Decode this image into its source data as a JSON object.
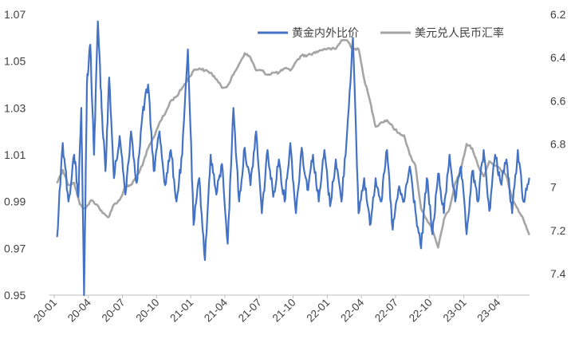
{
  "chart_data": {
    "type": "line",
    "title": "",
    "xlabel": "",
    "ylabel": "",
    "x_tick_labels": [
      "20-01",
      "20-04",
      "20-07",
      "20-10",
      "21-01",
      "21-04",
      "21-07",
      "21-10",
      "22-01",
      "22-04",
      "22-07",
      "22-10",
      "23-01",
      "23-04"
    ],
    "left_axis": {
      "min": 0.95,
      "max": 1.07,
      "ticks": [
        "1.07",
        "1.05",
        "1.03",
        "1.01",
        "0.99",
        "0.97",
        "0.95"
      ]
    },
    "right_axis": {
      "min": 6.2,
      "max": 7.5,
      "inverted": true,
      "ticks": [
        "6.2",
        "6.4",
        "6.6",
        "6.8",
        "7",
        "7.2",
        "7.4"
      ]
    },
    "legend_position": "top-right",
    "series": [
      {
        "name": "黄金内外比价",
        "axis": "left",
        "color": "#4472C4",
        "points": [
          [
            "20-01",
            0.975
          ],
          [
            "20-01",
            1.015
          ],
          [
            "20-02",
            0.99
          ],
          [
            "20-02",
            1.01
          ],
          [
            "20-03",
            0.992
          ],
          [
            "20-03",
            1.03
          ],
          [
            "20-03",
            0.95
          ],
          [
            "20-03",
            1.04
          ],
          [
            "20-04",
            1.057
          ],
          [
            "20-04",
            1.01
          ],
          [
            "20-04",
            1.067
          ],
          [
            "20-05",
            1.03
          ],
          [
            "20-05",
            1.003
          ],
          [
            "20-05",
            1.043
          ],
          [
            "20-06",
            1.0
          ],
          [
            "20-06",
            1.018
          ],
          [
            "20-07",
            0.993
          ],
          [
            "20-07",
            1.02
          ],
          [
            "20-08",
            0.998
          ],
          [
            "20-08",
            1.027
          ],
          [
            "20-09",
            1.04
          ],
          [
            "20-09",
            1.003
          ],
          [
            "20-10",
            1.02
          ],
          [
            "20-10",
            0.997
          ],
          [
            "20-11",
            1.012
          ],
          [
            "20-11",
            0.99
          ],
          [
            "20-12",
            1.01
          ],
          [
            "20-12",
            1.055
          ],
          [
            "21-01",
            0.98
          ],
          [
            "21-01",
            1.0
          ],
          [
            "21-02",
            0.965
          ],
          [
            "21-02",
            1.01
          ],
          [
            "21-03",
            0.993
          ],
          [
            "21-03",
            1.006
          ],
          [
            "21-04",
            0.972
          ],
          [
            "21-04",
            1.03
          ],
          [
            "21-05",
            0.99
          ],
          [
            "21-05",
            1.013
          ],
          [
            "21-06",
            0.997
          ],
          [
            "21-06",
            1.02
          ],
          [
            "21-07",
            0.985
          ],
          [
            "21-07",
            1.012
          ],
          [
            "21-08",
            0.992
          ],
          [
            "21-08",
            1.008
          ],
          [
            "21-09",
            0.99
          ],
          [
            "21-09",
            1.015
          ],
          [
            "21-10",
            0.985
          ],
          [
            "21-10",
            1.013
          ],
          [
            "21-11",
            0.995
          ],
          [
            "21-11",
            1.01
          ],
          [
            "21-12",
            0.99
          ],
          [
            "21-12",
            1.012
          ],
          [
            "22-01",
            0.988
          ],
          [
            "22-01",
            1.008
          ],
          [
            "22-02",
            0.99
          ],
          [
            "22-02",
            1.02
          ],
          [
            "22-03",
            1.06
          ],
          [
            "22-03",
            0.985
          ],
          [
            "22-04",
            1.0
          ],
          [
            "22-04",
            0.98
          ],
          [
            "22-05",
            1.0
          ],
          [
            "22-05",
            0.99
          ],
          [
            "22-06",
            1.012
          ],
          [
            "22-06",
            0.978
          ],
          [
            "22-07",
            0.995
          ],
          [
            "22-07",
            0.99
          ],
          [
            "22-08",
            1.005
          ],
          [
            "22-08",
            0.986
          ],
          [
            "22-09",
            0.97
          ],
          [
            "22-09",
            1.0
          ],
          [
            "22-10",
            0.976
          ],
          [
            "22-10",
            1.002
          ],
          [
            "22-11",
            0.985
          ],
          [
            "22-11",
            1.01
          ],
          [
            "22-12",
            0.99
          ],
          [
            "22-12",
            1.005
          ],
          [
            "23-01",
            0.976
          ],
          [
            "23-01",
            1.003
          ],
          [
            "23-02",
            0.99
          ],
          [
            "23-02",
            1.012
          ],
          [
            "23-03",
            0.986
          ],
          [
            "23-03",
            1.01
          ],
          [
            "23-04",
            0.998
          ],
          [
            "23-04",
            1.008
          ],
          [
            "23-05",
            0.985
          ],
          [
            "23-05",
            1.012
          ],
          [
            "23-06",
            0.99
          ],
          [
            "23-06",
            1.0
          ]
        ]
      },
      {
        "name": "美元兑人民币汇率",
        "axis": "right",
        "color": "#A5A5A5",
        "points": [
          [
            "20-01",
            6.98
          ],
          [
            "20-01",
            6.92
          ],
          [
            "20-02",
            6.99
          ],
          [
            "20-02",
            6.98
          ],
          [
            "20-03",
            7.08
          ],
          [
            "20-03",
            7.1
          ],
          [
            "20-04",
            7.06
          ],
          [
            "20-04",
            7.08
          ],
          [
            "20-05",
            7.12
          ],
          [
            "20-05",
            7.14
          ],
          [
            "20-06",
            7.08
          ],
          [
            "20-06",
            7.06
          ],
          [
            "20-07",
            7.0
          ],
          [
            "20-07",
            6.99
          ],
          [
            "20-08",
            6.95
          ],
          [
            "20-08",
            6.9
          ],
          [
            "20-09",
            6.82
          ],
          [
            "20-09",
            6.77
          ],
          [
            "20-10",
            6.7
          ],
          [
            "20-10",
            6.66
          ],
          [
            "20-11",
            6.6
          ],
          [
            "20-11",
            6.58
          ],
          [
            "20-12",
            6.54
          ],
          [
            "20-12",
            6.5
          ],
          [
            "21-01",
            6.46
          ],
          [
            "21-01",
            6.45
          ],
          [
            "21-02",
            6.46
          ],
          [
            "21-02",
            6.47
          ],
          [
            "21-03",
            6.5
          ],
          [
            "21-03",
            6.54
          ],
          [
            "21-04",
            6.53
          ],
          [
            "21-04",
            6.48
          ],
          [
            "21-05",
            6.43
          ],
          [
            "21-05",
            6.38
          ],
          [
            "21-06",
            6.4
          ],
          [
            "21-06",
            6.46
          ],
          [
            "21-07",
            6.46
          ],
          [
            "21-07",
            6.48
          ],
          [
            "21-08",
            6.47
          ],
          [
            "21-08",
            6.47
          ],
          [
            "21-09",
            6.45
          ],
          [
            "21-09",
            6.46
          ],
          [
            "21-10",
            6.42
          ],
          [
            "21-10",
            6.39
          ],
          [
            "21-11",
            6.39
          ],
          [
            "21-11",
            6.38
          ],
          [
            "21-12",
            6.37
          ],
          [
            "21-12",
            6.36
          ],
          [
            "22-01",
            6.36
          ],
          [
            "22-01",
            6.36
          ],
          [
            "22-02",
            6.32
          ],
          [
            "22-02",
            6.32
          ],
          [
            "22-03",
            6.36
          ],
          [
            "22-03",
            6.36
          ],
          [
            "22-04",
            6.5
          ],
          [
            "22-04",
            6.6
          ],
          [
            "22-05",
            6.72
          ],
          [
            "22-05",
            6.7
          ],
          [
            "22-06",
            6.69
          ],
          [
            "22-06",
            6.72
          ],
          [
            "22-07",
            6.75
          ],
          [
            "22-07",
            6.76
          ],
          [
            "22-08",
            6.85
          ],
          [
            "22-08",
            6.9
          ],
          [
            "22-09",
            7.1
          ],
          [
            "22-09",
            7.15
          ],
          [
            "22-10",
            7.2
          ],
          [
            "22-10",
            7.28
          ],
          [
            "22-11",
            7.15
          ],
          [
            "22-11",
            7.1
          ],
          [
            "22-12",
            6.98
          ],
          [
            "22-12",
            6.92
          ],
          [
            "23-01",
            6.8
          ],
          [
            "23-01",
            6.82
          ],
          [
            "23-02",
            6.9
          ],
          [
            "23-02",
            6.95
          ],
          [
            "23-03",
            6.88
          ],
          [
            "23-03",
            6.9
          ],
          [
            "23-04",
            6.92
          ],
          [
            "23-04",
            6.95
          ],
          [
            "23-05",
            7.05
          ],
          [
            "23-05",
            7.1
          ],
          [
            "23-06",
            7.15
          ],
          [
            "23-06",
            7.22
          ]
        ]
      }
    ]
  }
}
